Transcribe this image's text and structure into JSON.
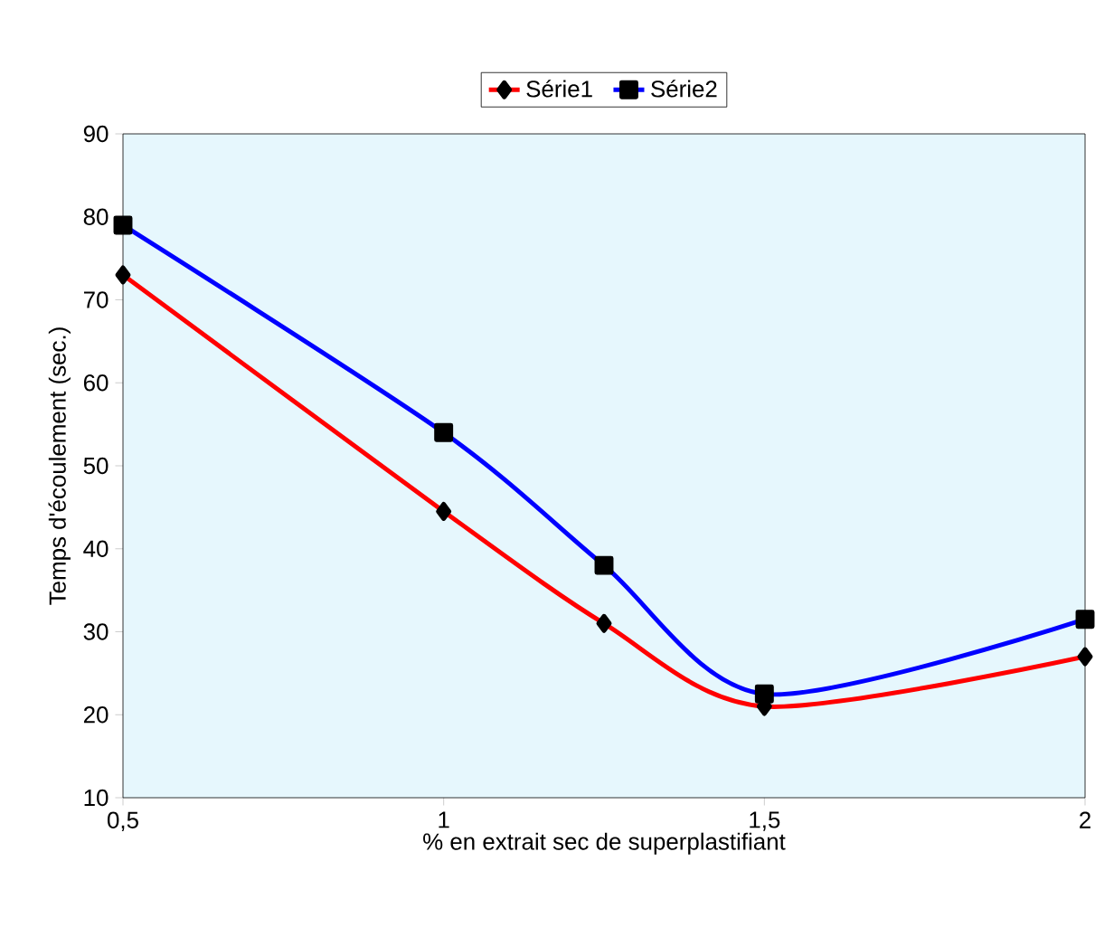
{
  "chart_data": {
    "type": "line",
    "xlabel": "% en extrait sec de superplastifiant",
    "ylabel": "Temps d'écoulement (sec.)",
    "x": [
      0.5,
      1,
      1.25,
      1.5,
      2
    ],
    "series": [
      {
        "name": "Série1",
        "color": "#ff0000",
        "marker": "diamond",
        "values": [
          73,
          44.5,
          31,
          21,
          27
        ]
      },
      {
        "name": "Série2",
        "color": "#0000ff",
        "marker": "square",
        "values": [
          79,
          54,
          38,
          22.5,
          31.5
        ]
      }
    ],
    "xlim": [
      0.5,
      2
    ],
    "ylim": [
      10,
      90
    ],
    "xticks": [
      {
        "value": 0.5,
        "label": "0,5"
      },
      1,
      {
        "value": 1.5,
        "label": "1,5"
      },
      2
    ],
    "yticks": [
      10,
      20,
      30,
      40,
      50,
      60,
      70,
      80,
      90
    ],
    "grid": false,
    "legend": "top",
    "line_style": "solid"
  }
}
